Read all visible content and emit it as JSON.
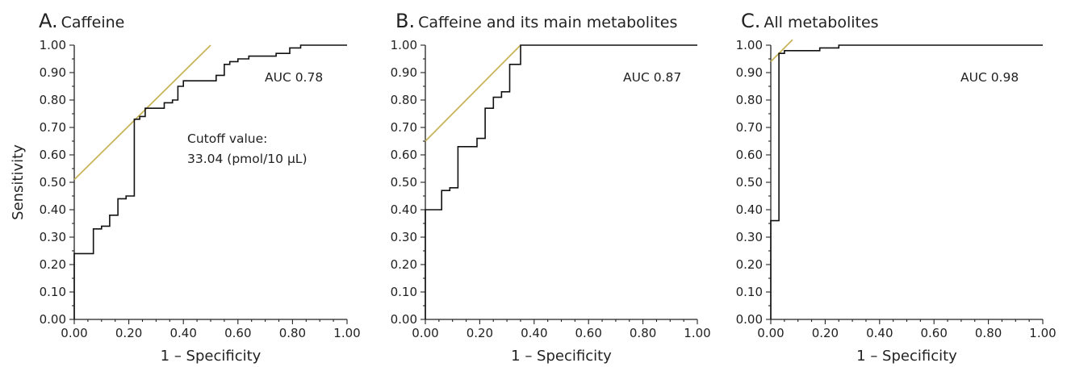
{
  "y_axis_label": "Sensitivity",
  "chart_data": [
    {
      "type": "line",
      "panel_letter": "A.",
      "panel_title": "Caffeine",
      "xlabel": "1 – Specificity",
      "ylabel": "Sensitivity",
      "xlim": [
        0,
        1
      ],
      "ylim": [
        0,
        1
      ],
      "x_ticks": [
        "0.00",
        "0.20",
        "0.40",
        "0.60",
        "0.80",
        "1.00"
      ],
      "y_ticks": [
        "0.00",
        "0.10",
        "0.20",
        "0.30",
        "0.40",
        "0.50",
        "0.60",
        "0.70",
        "0.80",
        "0.90",
        "1.00"
      ],
      "auc_label": "AUC 0.78",
      "annotation": [
        "Cutoff value:",
        "33.04 (pmol/10 µL)"
      ],
      "series": [
        {
          "values": [
            [
              0.0,
              0.0
            ],
            [
              0.0,
              0.24
            ],
            [
              0.07,
              0.24
            ],
            [
              0.07,
              0.33
            ],
            [
              0.1,
              0.33
            ],
            [
              0.1,
              0.34
            ],
            [
              0.13,
              0.34
            ],
            [
              0.13,
              0.38
            ],
            [
              0.16,
              0.38
            ],
            [
              0.16,
              0.44
            ],
            [
              0.19,
              0.44
            ],
            [
              0.19,
              0.45
            ],
            [
              0.22,
              0.45
            ],
            [
              0.22,
              0.73
            ],
            [
              0.24,
              0.73
            ],
            [
              0.24,
              0.74
            ],
            [
              0.26,
              0.74
            ],
            [
              0.26,
              0.77
            ],
            [
              0.33,
              0.77
            ],
            [
              0.33,
              0.79
            ],
            [
              0.36,
              0.79
            ],
            [
              0.36,
              0.8
            ],
            [
              0.38,
              0.8
            ],
            [
              0.38,
              0.85
            ],
            [
              0.4,
              0.85
            ],
            [
              0.4,
              0.87
            ],
            [
              0.52,
              0.87
            ],
            [
              0.52,
              0.89
            ],
            [
              0.55,
              0.89
            ],
            [
              0.55,
              0.93
            ],
            [
              0.57,
              0.93
            ],
            [
              0.57,
              0.94
            ],
            [
              0.6,
              0.94
            ],
            [
              0.6,
              0.95
            ],
            [
              0.64,
              0.95
            ],
            [
              0.64,
              0.96
            ],
            [
              0.74,
              0.96
            ],
            [
              0.74,
              0.97
            ],
            [
              0.79,
              0.97
            ],
            [
              0.79,
              0.99
            ],
            [
              0.83,
              0.99
            ],
            [
              0.83,
              1.0
            ],
            [
              1.0,
              1.0
            ]
          ]
        }
      ],
      "cutoff_line": [
        [
          0.0,
          0.51
        ],
        [
          0.5,
          1.0
        ]
      ]
    },
    {
      "type": "line",
      "panel_letter": "B.",
      "panel_title": "Caffeine and its main metabolites",
      "xlabel": "1 – Specificity",
      "ylabel": "",
      "xlim": [
        0,
        1
      ],
      "ylim": [
        0,
        1
      ],
      "x_ticks": [
        "0.00",
        "0.20",
        "0.40",
        "0.60",
        "0.80",
        "1.00"
      ],
      "y_ticks": [
        "0.00",
        "0.10",
        "0.20",
        "0.30",
        "0.40",
        "0.50",
        "0.60",
        "0.70",
        "0.80",
        "0.90",
        "1.00"
      ],
      "auc_label": "AUC 0.87",
      "annotation": [],
      "series": [
        {
          "values": [
            [
              0.0,
              0.0
            ],
            [
              0.0,
              0.4
            ],
            [
              0.06,
              0.4
            ],
            [
              0.06,
              0.47
            ],
            [
              0.09,
              0.47
            ],
            [
              0.09,
              0.48
            ],
            [
              0.12,
              0.48
            ],
            [
              0.12,
              0.63
            ],
            [
              0.19,
              0.63
            ],
            [
              0.19,
              0.66
            ],
            [
              0.22,
              0.66
            ],
            [
              0.22,
              0.77
            ],
            [
              0.25,
              0.77
            ],
            [
              0.25,
              0.81
            ],
            [
              0.28,
              0.81
            ],
            [
              0.28,
              0.83
            ],
            [
              0.31,
              0.83
            ],
            [
              0.31,
              0.93
            ],
            [
              0.35,
              0.93
            ],
            [
              0.35,
              1.0
            ],
            [
              1.0,
              1.0
            ]
          ]
        }
      ],
      "cutoff_line": [
        [
          0.0,
          0.65
        ],
        [
          0.35,
          1.0
        ]
      ]
    },
    {
      "type": "line",
      "panel_letter": "C.",
      "panel_title": "All metabolites",
      "xlabel": "1 – Specificity",
      "ylabel": "",
      "xlim": [
        0,
        1
      ],
      "ylim": [
        0,
        1
      ],
      "x_ticks": [
        "0.00",
        "0.20",
        "0.40",
        "0.60",
        "0.80",
        "1.00"
      ],
      "y_ticks": [
        "0.00",
        "0.10",
        "0.20",
        "0.30",
        "0.40",
        "0.50",
        "0.60",
        "0.70",
        "0.80",
        "0.90",
        "1.00"
      ],
      "auc_label": "AUC 0.98",
      "annotation": [],
      "series": [
        {
          "values": [
            [
              0.0,
              0.0
            ],
            [
              0.0,
              0.36
            ],
            [
              0.03,
              0.36
            ],
            [
              0.03,
              0.97
            ],
            [
              0.05,
              0.97
            ],
            [
              0.05,
              0.98
            ],
            [
              0.18,
              0.98
            ],
            [
              0.18,
              0.99
            ],
            [
              0.25,
              0.99
            ],
            [
              0.25,
              1.0
            ],
            [
              1.0,
              1.0
            ]
          ]
        }
      ],
      "cutoff_line": [
        [
          0.0,
          0.94
        ],
        [
          0.08,
          1.02
        ]
      ]
    }
  ],
  "colors": {
    "roc_curve": "#111111",
    "cutoff_line": "#c9b45a",
    "text": "#222222"
  }
}
